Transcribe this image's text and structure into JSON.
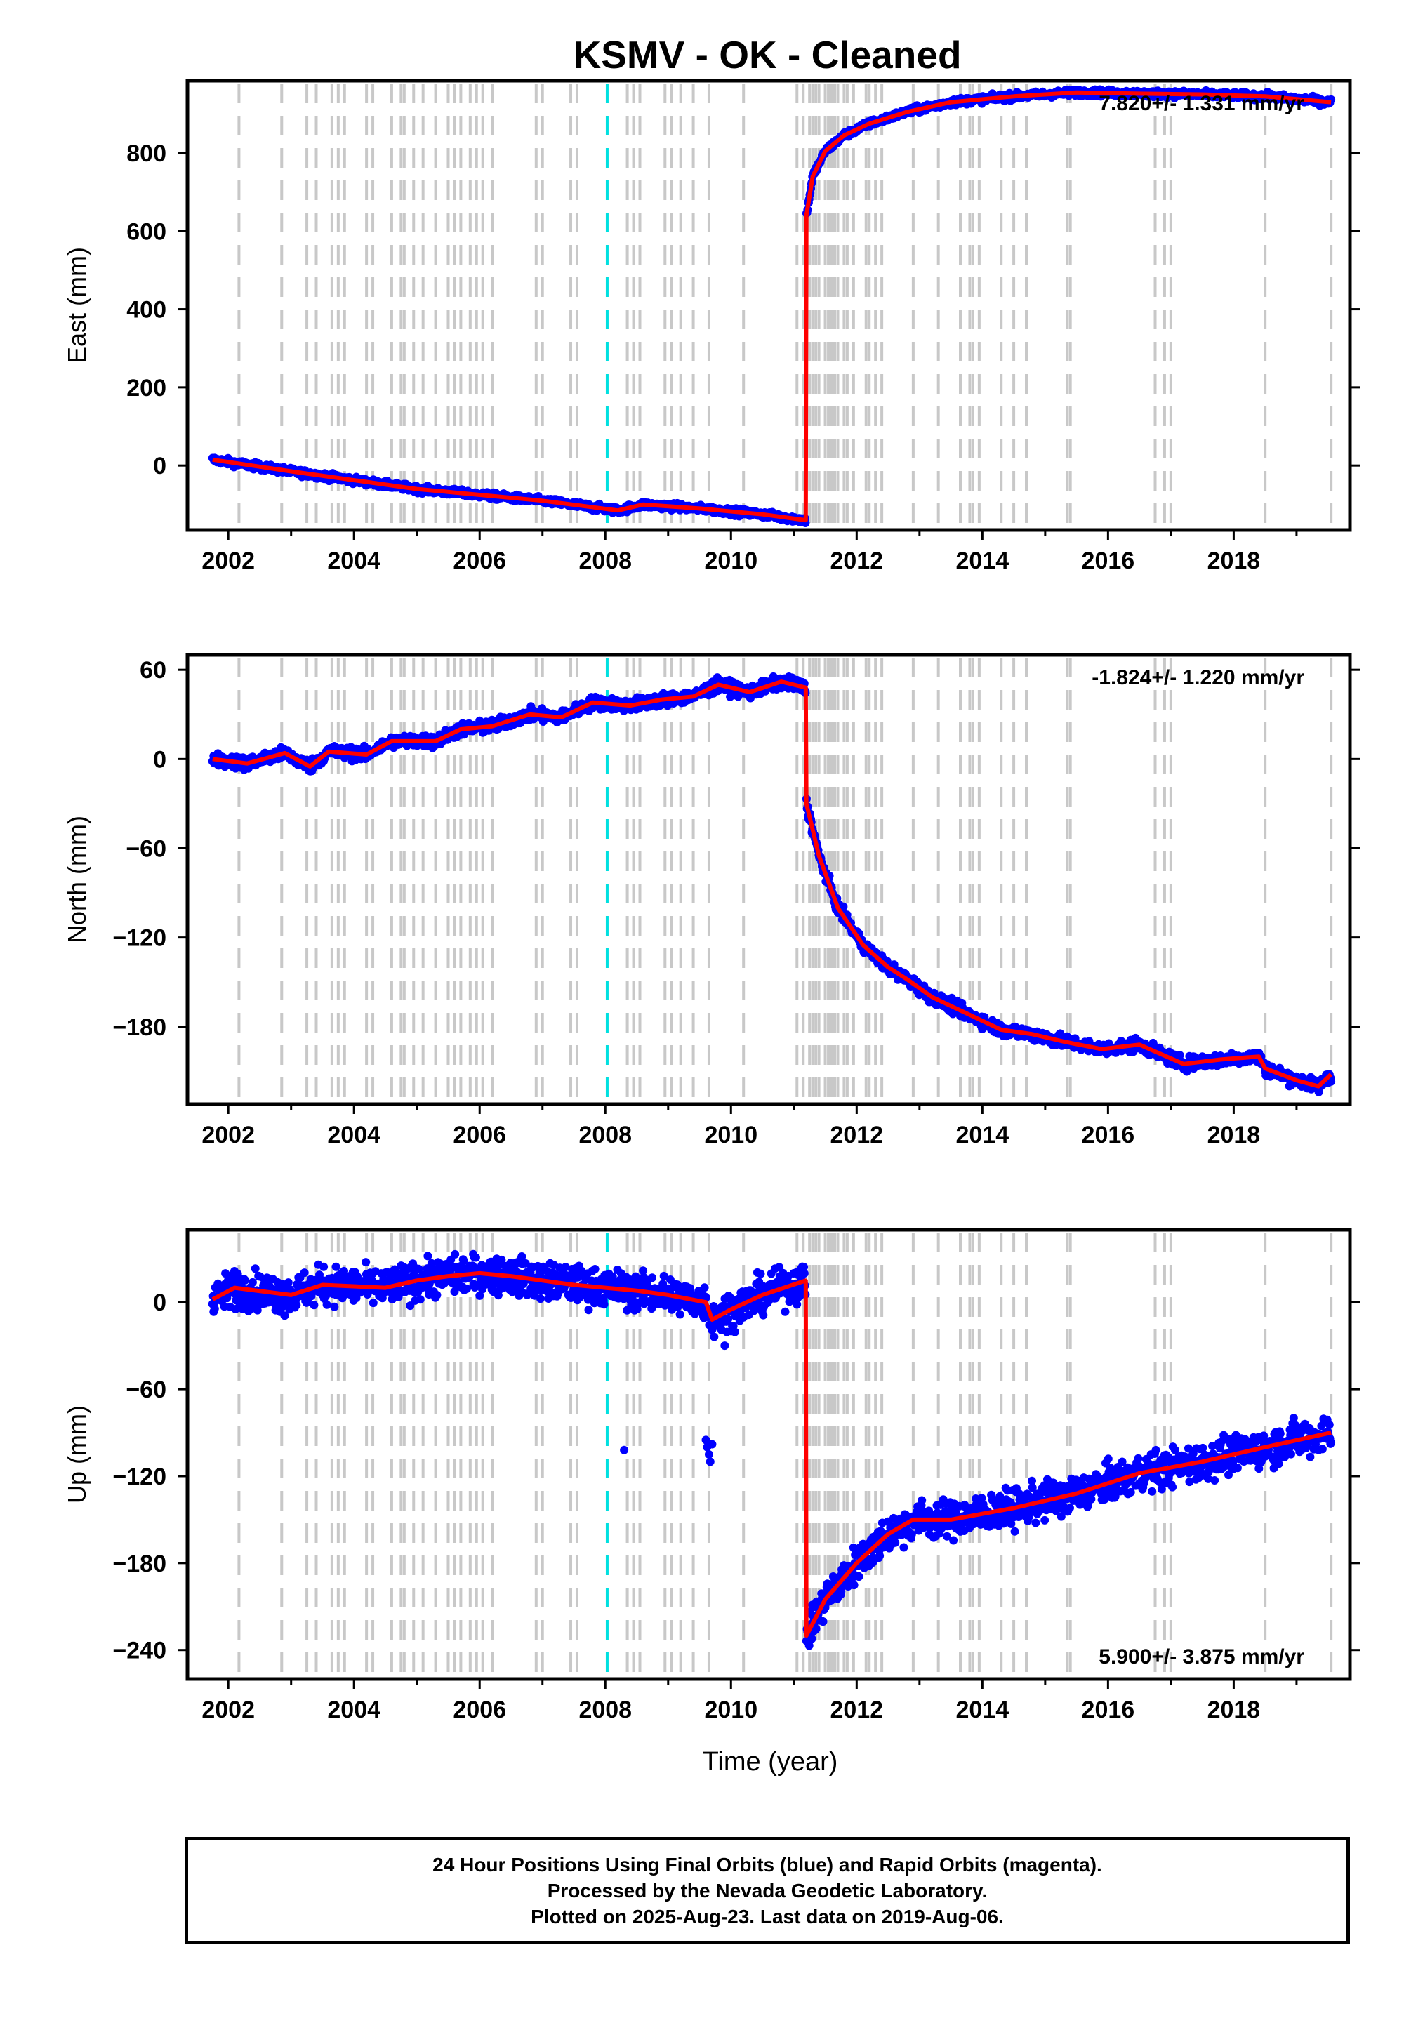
{
  "title": "KSMV  - OK - Cleaned",
  "colors": {
    "final": "#0000ff",
    "model": "#ff0000",
    "steps": "#c8c8c8",
    "marker": "#00e0e0"
  },
  "steps": [
    2002.17,
    2002.85,
    2003.25,
    2003.4,
    2003.65,
    2003.75,
    2003.85,
    2004.2,
    2004.3,
    2004.6,
    2004.75,
    2004.8,
    2004.95,
    2005.1,
    2005.3,
    2005.5,
    2005.6,
    2005.7,
    2005.85,
    2005.95,
    2006.05,
    2006.2,
    2006.9,
    2007.0,
    2007.45,
    2007.55,
    2008.35,
    2008.45,
    2008.55,
    2008.95,
    2009.05,
    2009.2,
    2009.4,
    2009.65,
    2010.2,
    2011.05,
    2011.15,
    2011.25,
    2011.3,
    2011.35,
    2011.4,
    2011.5,
    2011.55,
    2011.6,
    2011.65,
    2011.7,
    2011.8,
    2011.85,
    2011.95,
    2012.15,
    2012.2,
    2012.3,
    2012.4,
    2012.9,
    2013.3,
    2013.65,
    2013.8,
    2013.85,
    2013.95,
    2014.3,
    2014.5,
    2014.7,
    2015.35,
    2015.4,
    2016.75,
    2016.9,
    2017.0,
    2018.5,
    2019.55
  ],
  "marker_year": 2008.03,
  "chart_data": [
    {
      "type": "scatter",
      "name": "east",
      "ylabel": "East (mm)",
      "xlim": [
        2001.35,
        2019.85
      ],
      "ylim": [
        -165,
        985
      ],
      "yticks": [
        0,
        200,
        400,
        600,
        800
      ],
      "xticks": [
        2002,
        2004,
        2006,
        2008,
        2010,
        2012,
        2014,
        2016,
        2018
      ],
      "rate": "7.820+/- 1.331 mm/yr",
      "rate_pos": "top-right",
      "model": [
        [
          2001.75,
          15
        ],
        [
          2003,
          -15
        ],
        [
          2005,
          -60
        ],
        [
          2007,
          -90
        ],
        [
          2008.2,
          -115
        ],
        [
          2008.6,
          -100
        ],
        [
          2009.5,
          -110
        ],
        [
          2010.5,
          -125
        ],
        [
          2011.19,
          -140
        ],
        [
          2011.2,
          640
        ],
        [
          2011.3,
          740
        ],
        [
          2011.5,
          805
        ],
        [
          2011.8,
          845
        ],
        [
          2012.2,
          875
        ],
        [
          2012.8,
          905
        ],
        [
          2013.5,
          930
        ],
        [
          2014.5,
          945
        ],
        [
          2015.5,
          955
        ],
        [
          2016.5,
          952
        ],
        [
          2017.5,
          950
        ],
        [
          2018.5,
          945
        ],
        [
          2019.55,
          930
        ]
      ],
      "noise": 6
    },
    {
      "type": "scatter",
      "name": "north",
      "ylabel": "North (mm)",
      "xlim": [
        2001.35,
        2019.85
      ],
      "ylim": [
        -232,
        70
      ],
      "yticks": [
        60,
        0,
        -60,
        -120,
        -180
      ],
      "xticks": [
        2002,
        2004,
        2006,
        2008,
        2010,
        2012,
        2014,
        2016,
        2018
      ],
      "rate": "-1.824+/- 1.220 mm/yr",
      "rate_pos": "top-right",
      "model": [
        [
          2001.75,
          0
        ],
        [
          2002.3,
          -3
        ],
        [
          2002.9,
          4
        ],
        [
          2003.3,
          -5
        ],
        [
          2003.6,
          5
        ],
        [
          2004.2,
          3
        ],
        [
          2004.6,
          12
        ],
        [
          2005.3,
          12
        ],
        [
          2005.7,
          20
        ],
        [
          2006.2,
          22
        ],
        [
          2006.8,
          30
        ],
        [
          2007.3,
          28
        ],
        [
          2007.8,
          38
        ],
        [
          2008.4,
          36
        ],
        [
          2008.9,
          40
        ],
        [
          2009.4,
          42
        ],
        [
          2009.8,
          50
        ],
        [
          2010.3,
          45
        ],
        [
          2010.8,
          52
        ],
        [
          2011.19,
          48
        ],
        [
          2011.2,
          -30
        ],
        [
          2011.4,
          -65
        ],
        [
          2011.7,
          -100
        ],
        [
          2012.1,
          -125
        ],
        [
          2012.5,
          -140
        ],
        [
          2012.8,
          -148
        ],
        [
          2013.2,
          -160
        ],
        [
          2013.8,
          -172
        ],
        [
          2014.3,
          -182
        ],
        [
          2014.8,
          -185
        ],
        [
          2015.3,
          -190
        ],
        [
          2015.9,
          -195
        ],
        [
          2016.5,
          -192
        ],
        [
          2017.2,
          -205
        ],
        [
          2017.8,
          -202
        ],
        [
          2018.4,
          -200
        ],
        [
          2018.5,
          -208
        ],
        [
          2019.0,
          -216
        ],
        [
          2019.35,
          -220
        ],
        [
          2019.55,
          -212
        ]
      ],
      "noise": 3
    },
    {
      "type": "scatter",
      "name": "up",
      "ylabel": "Up (mm)",
      "xlabel": "Time (year)",
      "xlim": [
        2001.35,
        2019.85
      ],
      "ylim": [
        -260,
        50
      ],
      "yticks": [
        0,
        -60,
        -120,
        -180,
        -240
      ],
      "xticks": [
        2002,
        2004,
        2006,
        2008,
        2010,
        2012,
        2014,
        2016,
        2018
      ],
      "rate": "5.900+/- 3.875 mm/yr",
      "rate_pos": "bottom-right",
      "model": [
        [
          2001.75,
          2
        ],
        [
          2002.1,
          10
        ],
        [
          2003,
          5
        ],
        [
          2003.5,
          12
        ],
        [
          2004.5,
          10
        ],
        [
          2005,
          15
        ],
        [
          2005.5,
          18
        ],
        [
          2006,
          20
        ],
        [
          2006.5,
          18
        ],
        [
          2007,
          15
        ],
        [
          2007.5,
          12
        ],
        [
          2008,
          10
        ],
        [
          2008.5,
          8
        ],
        [
          2009,
          5
        ],
        [
          2009.6,
          0
        ],
        [
          2009.7,
          -12
        ],
        [
          2010,
          -5
        ],
        [
          2010.5,
          5
        ],
        [
          2011.19,
          15
        ],
        [
          2011.2,
          -230
        ],
        [
          2011.5,
          -205
        ],
        [
          2012,
          -180
        ],
        [
          2012.5,
          -160
        ],
        [
          2012.9,
          -150
        ],
        [
          2013.5,
          -150
        ],
        [
          2014.5,
          -142
        ],
        [
          2015.5,
          -132
        ],
        [
          2016.5,
          -118
        ],
        [
          2017.5,
          -110
        ],
        [
          2018.5,
          -100
        ],
        [
          2019.55,
          -90
        ]
      ],
      "noise": 9,
      "outliers": [
        [
          2008.3,
          -102
        ],
        [
          2009.6,
          -95
        ],
        [
          2009.62,
          -100
        ],
        [
          2009.65,
          -105
        ],
        [
          2009.67,
          -110
        ],
        [
          2009.7,
          -98
        ],
        [
          2009.9,
          -30
        ]
      ]
    }
  ],
  "footer": {
    "line1": "24 Hour Positions Using Final Orbits (blue) and Rapid Orbits (magenta).",
    "line2": "Processed by the Nevada Geodetic Laboratory.",
    "line3": "Plotted on 2025-Aug-23. Last data on 2019-Aug-06."
  }
}
